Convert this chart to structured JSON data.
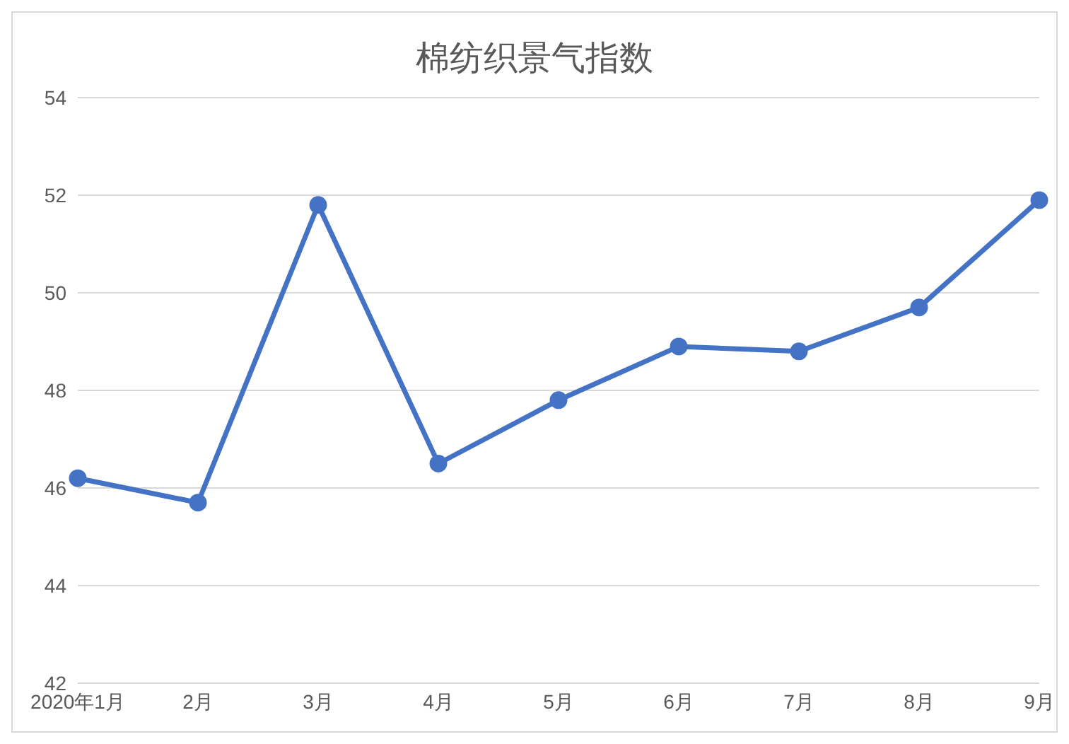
{
  "chart_data": {
    "type": "line",
    "title": "棉纺织景气指数",
    "categories": [
      "2020年1月",
      "2月",
      "3月",
      "4月",
      "5月",
      "6月",
      "7月",
      "8月",
      "9月"
    ],
    "series": [
      {
        "color": "#4472c4",
        "values": [
          46.2,
          45.7,
          51.8,
          46.5,
          47.8,
          48.9,
          48.8,
          49.7,
          51.9
        ]
      }
    ],
    "ylim": [
      42,
      54
    ],
    "yticks": [
      42,
      44,
      46,
      48,
      50,
      52,
      54
    ],
    "grid": "y",
    "legend": false,
    "marker": "circle",
    "line_style": "solid"
  }
}
